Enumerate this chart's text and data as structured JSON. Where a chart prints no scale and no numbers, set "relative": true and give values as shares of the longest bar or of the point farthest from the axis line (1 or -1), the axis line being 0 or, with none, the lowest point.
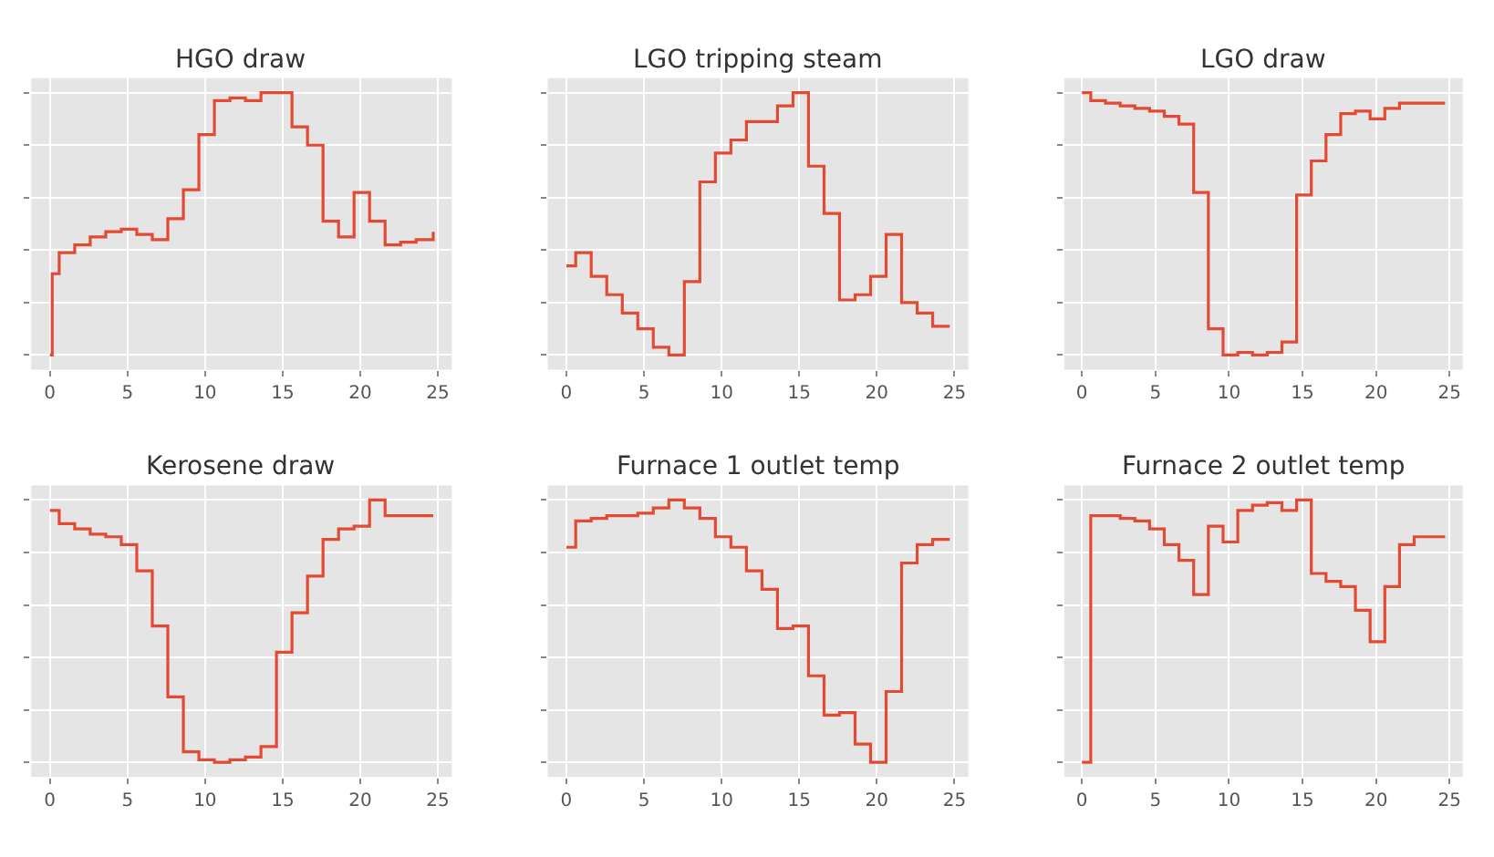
{
  "chart_data": [
    {
      "type": "step",
      "title": "HGO draw",
      "relative": true,
      "tick_labels": "x",
      "grid": true,
      "xlim": [
        -1.2,
        25.9
      ],
      "xticks": [
        0,
        5,
        10,
        15,
        20,
        25
      ],
      "series": [
        {
          "color": "#e24a33",
          "x": [
            0,
            0.15,
            0.6,
            1.6,
            2.6,
            3.6,
            4.6,
            5.6,
            6.6,
            7.6,
            8.6,
            9.6,
            10.6,
            11.6,
            12.6,
            13.6,
            14.6,
            15.6,
            16.6,
            17.6,
            18.6,
            19.6,
            20.6,
            21.6,
            22.6,
            23.6,
            24.7
          ],
          "values": [
            0,
            0.31,
            0.39,
            0.42,
            0.45,
            0.47,
            0.48,
            0.46,
            0.44,
            0.52,
            0.63,
            0.84,
            0.97,
            0.98,
            0.97,
            1,
            1.0,
            0.87,
            0.8,
            0.51,
            0.45,
            0.62,
            0.51,
            0.42,
            0.43,
            0.44,
            0.47
          ]
        }
      ]
    },
    {
      "type": "step",
      "title": "LGO tripping steam",
      "relative": true,
      "tick_labels": "x",
      "grid": true,
      "xlim": [
        -1.2,
        25.9
      ],
      "xticks": [
        0,
        5,
        10,
        15,
        20,
        25
      ],
      "series": [
        {
          "color": "#e24a33",
          "x": [
            0,
            0.6,
            1.6,
            2.6,
            3.6,
            4.6,
            5.6,
            6.6,
            7.6,
            8.6,
            9.6,
            10.6,
            11.6,
            12.6,
            13.6,
            14.6,
            15.6,
            16.6,
            17.6,
            18.6,
            19.6,
            20.6,
            21.6,
            22.6,
            23.6,
            24.7
          ],
          "values": [
            0.34,
            0.39,
            0.3,
            0.23,
            0.16,
            0.1,
            0.03,
            0,
            0.28,
            0.66,
            0.77,
            0.82,
            0.89,
            0.89,
            0.95,
            1,
            0.72,
            0.54,
            0.21,
            0.23,
            0.3,
            0.46,
            0.2,
            0.16,
            0.11,
            0.11
          ]
        }
      ]
    },
    {
      "type": "step",
      "title": "LGO draw",
      "relative": true,
      "tick_labels": "x",
      "grid": true,
      "xlim": [
        -1.2,
        25.9
      ],
      "xticks": [
        0,
        5,
        10,
        15,
        20,
        25
      ],
      "series": [
        {
          "color": "#e24a33",
          "x": [
            0,
            0.6,
            1.6,
            2.6,
            3.6,
            4.6,
            5.6,
            6.6,
            7.6,
            8.6,
            9.6,
            10.6,
            11.6,
            12.6,
            13.6,
            14.6,
            15.6,
            16.6,
            17.6,
            18.6,
            19.6,
            20.6,
            21.6,
            22.6,
            23.6,
            24.7
          ],
          "values": [
            1,
            0.97,
            0.96,
            0.95,
            0.94,
            0.93,
            0.91,
            0.88,
            0.62,
            0.1,
            0,
            0.01,
            0.0,
            0.01,
            0.05,
            0.61,
            0.74,
            0.84,
            0.92,
            0.93,
            0.9,
            0.94,
            0.96,
            0.96,
            0.96,
            0.96
          ]
        }
      ]
    },
    {
      "type": "step",
      "title": "Kerosene draw",
      "relative": true,
      "tick_labels": "x",
      "grid": true,
      "xlim": [
        -1.2,
        25.9
      ],
      "xticks": [
        0,
        5,
        10,
        15,
        20,
        25
      ],
      "series": [
        {
          "color": "#e24a33",
          "x": [
            0,
            0.6,
            1.6,
            2.6,
            3.6,
            4.6,
            5.6,
            6.6,
            7.6,
            8.6,
            9.6,
            10.6,
            11.6,
            12.6,
            13.6,
            14.6,
            15.6,
            16.6,
            17.6,
            18.6,
            19.6,
            20.6,
            21.6,
            22.6,
            23.6,
            24.7
          ],
          "values": [
            0.96,
            0.91,
            0.89,
            0.87,
            0.86,
            0.83,
            0.73,
            0.52,
            0.25,
            0.04,
            0.01,
            0,
            0.01,
            0.02,
            0.06,
            0.42,
            0.57,
            0.71,
            0.85,
            0.89,
            0.9,
            1,
            0.94,
            0.94,
            0.94,
            0.94
          ]
        }
      ]
    },
    {
      "type": "step",
      "title": "Furnace 1 outlet temp",
      "relative": true,
      "tick_labels": "x",
      "grid": true,
      "xlim": [
        -1.2,
        25.9
      ],
      "xticks": [
        0,
        5,
        10,
        15,
        20,
        25
      ],
      "series": [
        {
          "color": "#e24a33",
          "x": [
            0,
            0.6,
            1.6,
            2.6,
            3.6,
            4.6,
            5.6,
            6.6,
            7.6,
            8.6,
            9.6,
            10.6,
            11.6,
            12.6,
            13.6,
            14.6,
            15.6,
            16.6,
            17.6,
            18.6,
            19.6,
            20.6,
            21.6,
            22.6,
            23.6,
            24.7
          ],
          "values": [
            0.82,
            0.92,
            0.93,
            0.94,
            0.94,
            0.95,
            0.97,
            1,
            0.97,
            0.93,
            0.86,
            0.82,
            0.73,
            0.66,
            0.51,
            0.52,
            0.33,
            0.18,
            0.19,
            0.07,
            0,
            0.27,
            0.76,
            0.83,
            0.85,
            0.85
          ]
        }
      ]
    },
    {
      "type": "step",
      "title": "Furnace 2 outlet temp",
      "relative": true,
      "tick_labels": "x",
      "grid": true,
      "xlim": [
        -1.2,
        25.9
      ],
      "xticks": [
        0,
        5,
        10,
        15,
        20,
        25
      ],
      "series": [
        {
          "color": "#e24a33",
          "x": [
            0,
            0.6,
            1.6,
            2.6,
            3.6,
            4.6,
            5.6,
            6.6,
            7.6,
            8.6,
            9.6,
            10.6,
            11.6,
            12.6,
            13.6,
            14.6,
            15.6,
            16.6,
            17.6,
            18.6,
            19.6,
            20.6,
            21.6,
            22.6,
            23.6,
            24.7
          ],
          "values": [
            0,
            0.94,
            0.94,
            0.93,
            0.92,
            0.89,
            0.83,
            0.77,
            0.64,
            0.9,
            0.84,
            0.96,
            0.98,
            0.99,
            0.96,
            1,
            0.72,
            0.69,
            0.67,
            0.58,
            0.46,
            0.67,
            0.83,
            0.86,
            0.86,
            0.86
          ]
        }
      ]
    }
  ]
}
